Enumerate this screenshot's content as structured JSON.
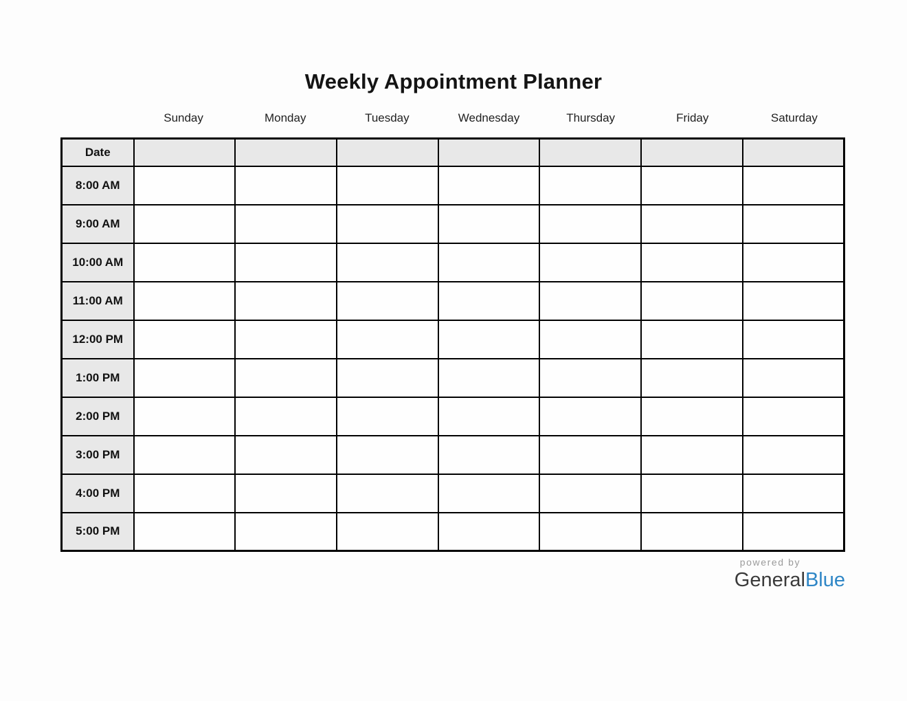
{
  "page": {
    "title": "Weekly Appointment Planner"
  },
  "planner": {
    "days": [
      "Sunday",
      "Monday",
      "Tuesday",
      "Wednesday",
      "Thursday",
      "Friday",
      "Saturday"
    ],
    "date_row_label": "Date",
    "time_slots": [
      "8:00 AM",
      "9:00 AM",
      "10:00 AM",
      "11:00 AM",
      "12:00 PM",
      "1:00 PM",
      "2:00 PM",
      "3:00 PM",
      "4:00 PM",
      "5:00 PM"
    ],
    "cells_empty_value": "",
    "colors": {
      "header_fill": "#e8e8e8",
      "grid_border": "#000000"
    }
  },
  "footer": {
    "powered_by": "powered by",
    "brand_part1": "General",
    "brand_part2": "Blue",
    "powered_by_color": "#9b9b9b",
    "brand_part1_color": "#3b3b3b",
    "brand_part2_color": "#2e86c6"
  }
}
